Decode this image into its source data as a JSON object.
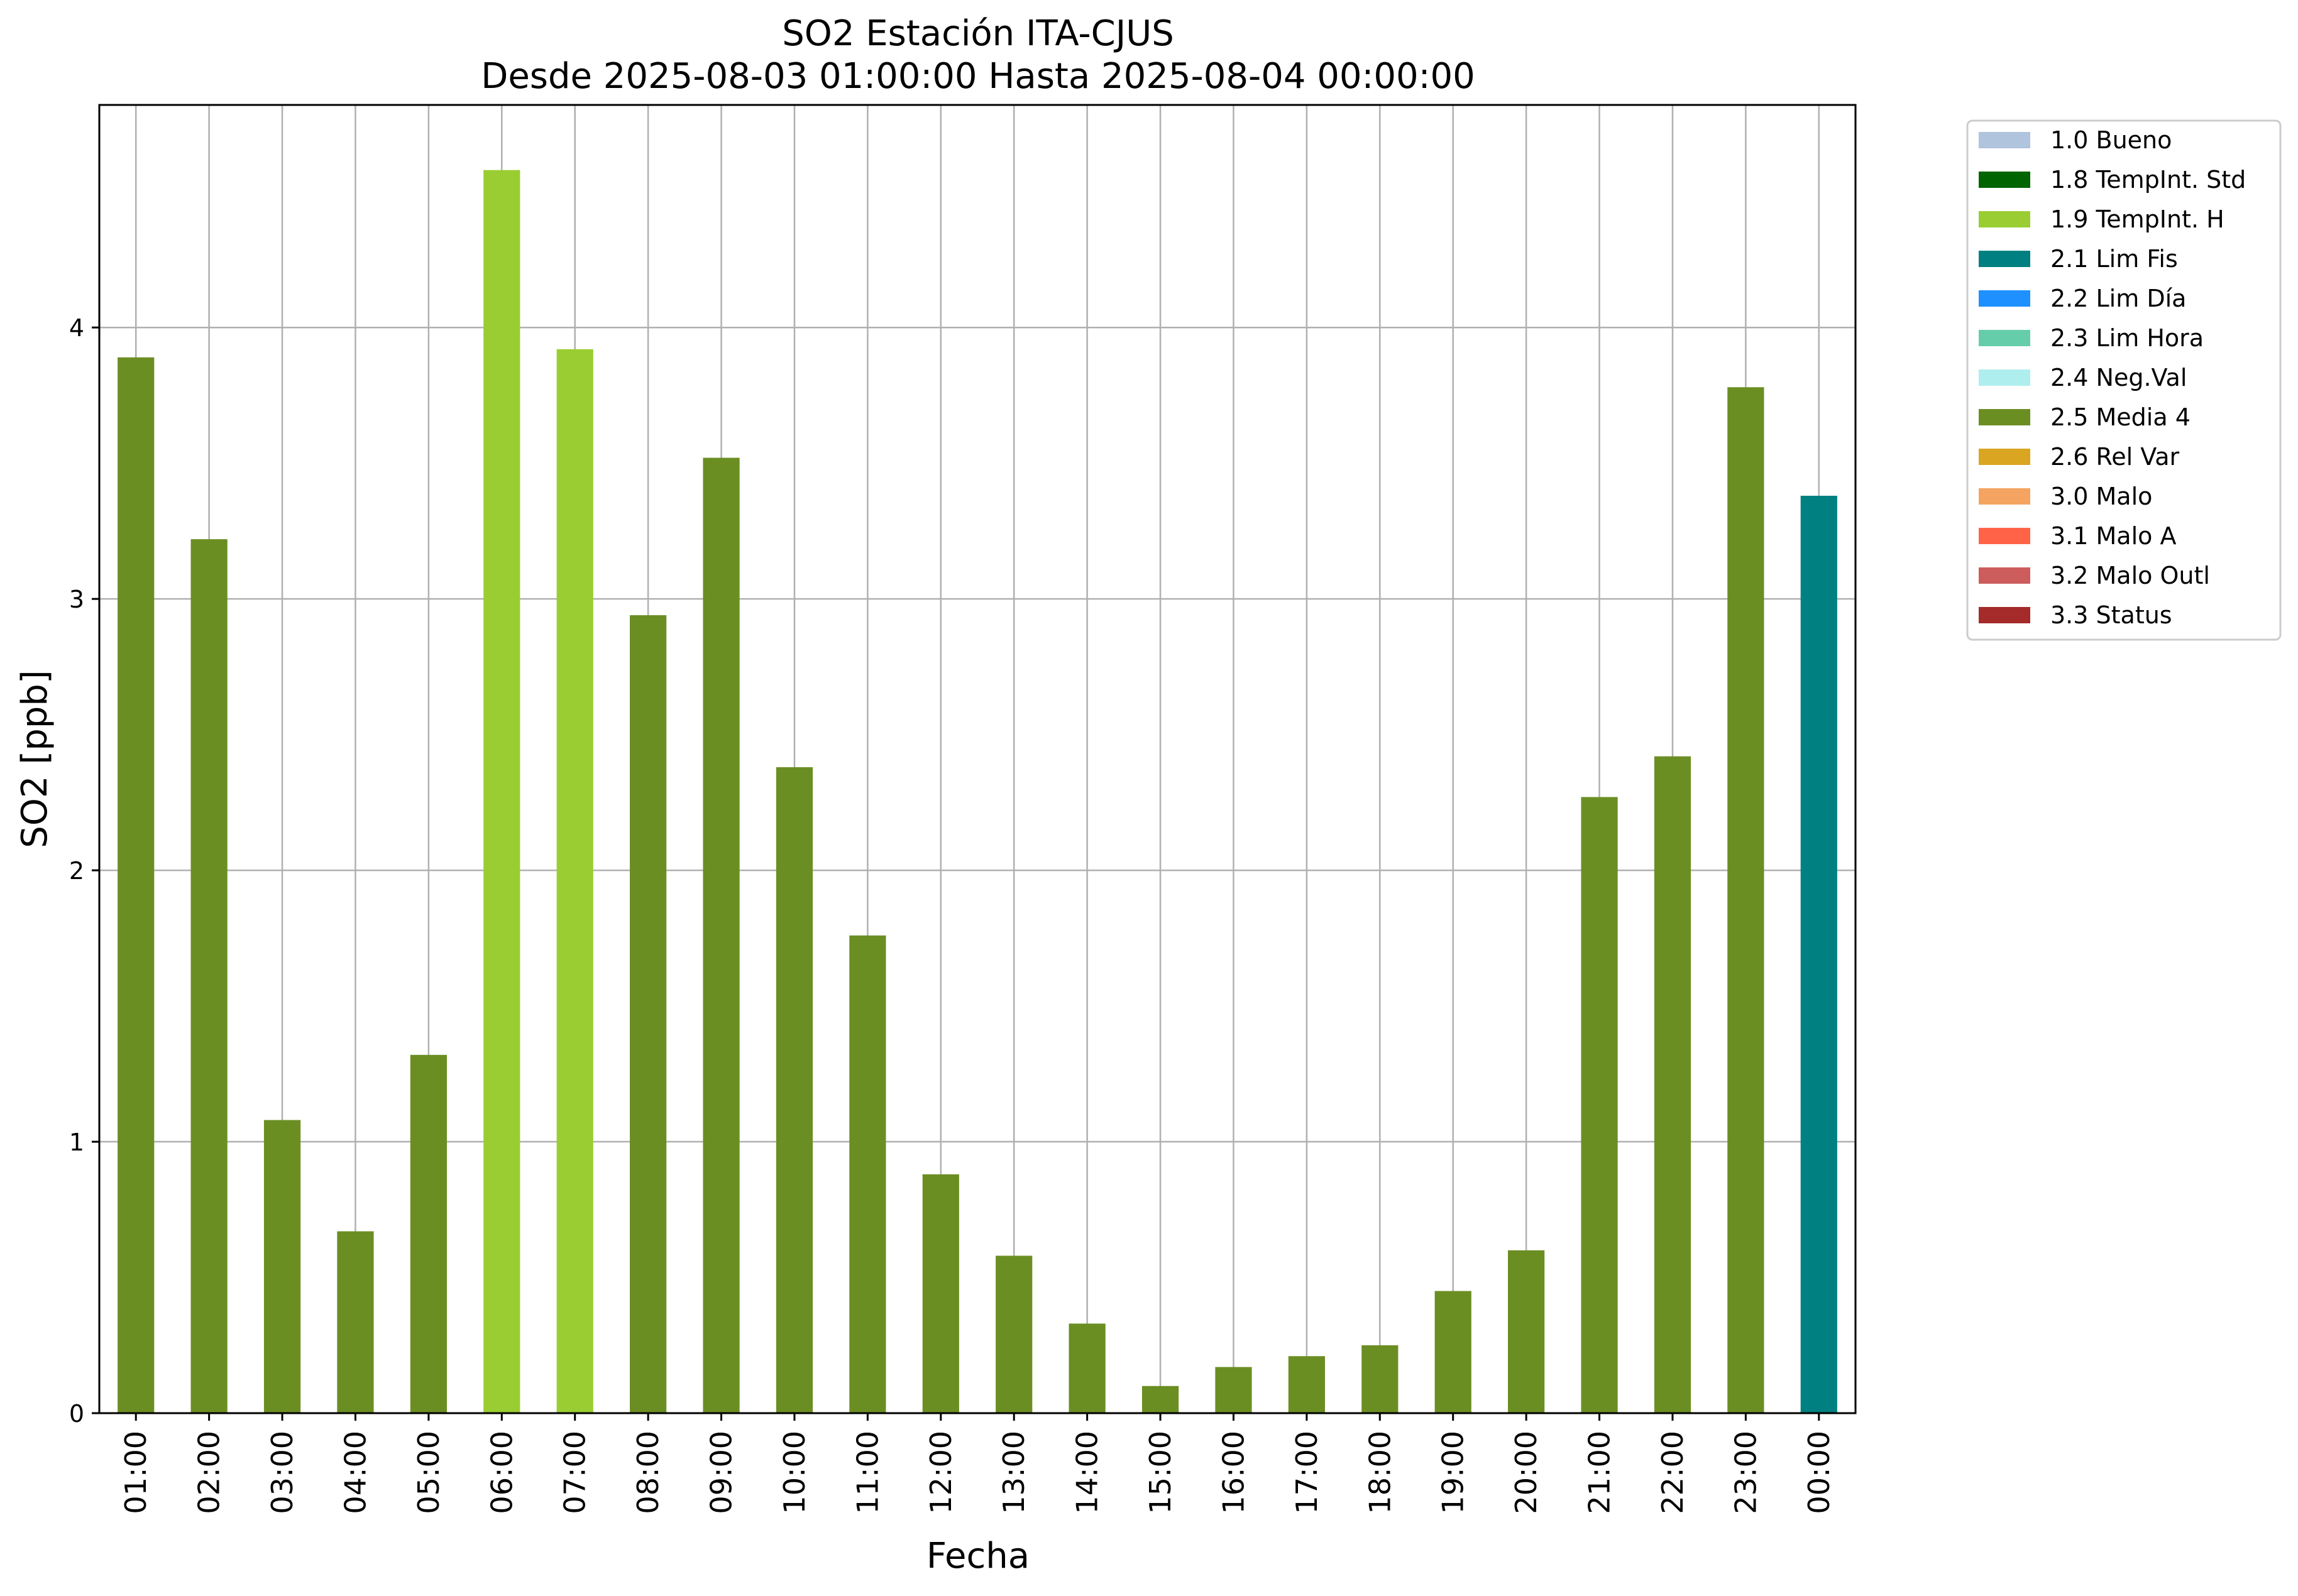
{
  "chart_data": {
    "type": "bar",
    "title": "SO2 Estación ITA-CJUS",
    "subtitle": "Desde 2025-08-03 01:00:00 Hasta 2025-08-04 00:00:00",
    "xlabel": "Fecha",
    "ylabel": "SO2 [ppb]",
    "ylim": [
      0,
      4.82
    ],
    "yticks": [
      "0",
      "1",
      "2",
      "3",
      "4"
    ],
    "grid": true,
    "legend_position": "outside-top-right",
    "categories": [
      "01:00",
      "02:00",
      "03:00",
      "04:00",
      "05:00",
      "06:00",
      "07:00",
      "08:00",
      "09:00",
      "10:00",
      "11:00",
      "12:00",
      "13:00",
      "14:00",
      "15:00",
      "16:00",
      "17:00",
      "18:00",
      "19:00",
      "20:00",
      "21:00",
      "22:00",
      "23:00",
      "00:00"
    ],
    "values": [
      3.89,
      3.22,
      1.08,
      0.67,
      1.32,
      4.58,
      3.92,
      2.94,
      3.52,
      2.38,
      1.76,
      0.88,
      0.58,
      0.33,
      0.1,
      0.17,
      0.21,
      0.25,
      0.45,
      0.6,
      2.27,
      2.42,
      3.78,
      3.38
    ],
    "bar_flags": [
      "2.5 Media 4",
      "2.5 Media 4",
      "2.5 Media 4",
      "2.5 Media 4",
      "2.5 Media 4",
      "1.9 TempInt. H",
      "1.9 TempInt. H",
      "2.5 Media 4",
      "2.5 Media 4",
      "2.5 Media 4",
      "2.5 Media 4",
      "2.5 Media 4",
      "2.5 Media 4",
      "2.5 Media 4",
      "2.5 Media 4",
      "2.5 Media 4",
      "2.5 Media 4",
      "2.5 Media 4",
      "2.5 Media 4",
      "2.5 Media 4",
      "2.5 Media 4",
      "2.5 Media 4",
      "2.5 Media 4",
      "2.1 Lim Fis"
    ],
    "legend": [
      {
        "label": "1.0 Bueno",
        "color": "#b0c4de"
      },
      {
        "label": "1.8 TempInt. Std",
        "color": "#006400"
      },
      {
        "label": "1.9 TempInt. H",
        "color": "#9acd32"
      },
      {
        "label": "2.1 Lim Fis",
        "color": "#008080"
      },
      {
        "label": "2.2 Lim Día",
        "color": "#1e90ff"
      },
      {
        "label": "2.3 Lim Hora",
        "color": "#66cdaa"
      },
      {
        "label": "2.4 Neg.Val",
        "color": "#afeeee"
      },
      {
        "label": "2.5 Media 4",
        "color": "#6b8e23"
      },
      {
        "label": "2.6 Rel Var",
        "color": "#daa520"
      },
      {
        "label": "3.0 Malo",
        "color": "#f4a460"
      },
      {
        "label": "3.1 Malo A",
        "color": "#ff6347"
      },
      {
        "label": "3.2 Malo Outl",
        "color": "#cd5c5c"
      },
      {
        "label": "3.3 Status",
        "color": "#a52a2a"
      }
    ]
  }
}
